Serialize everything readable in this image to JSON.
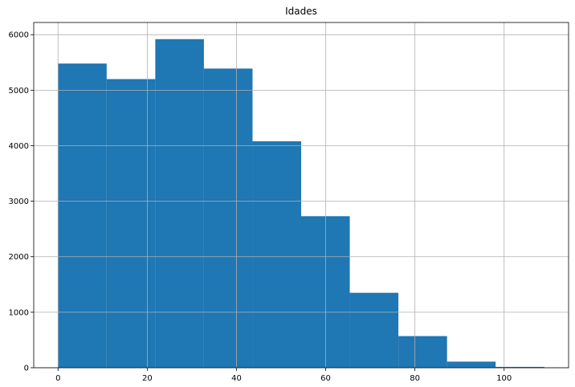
{
  "chart_data": {
    "type": "bar",
    "subtype": "histogram",
    "title": "Idades",
    "xlabel": "",
    "ylabel": "",
    "bin_edges": [
      0,
      10.9,
      21.8,
      32.7,
      43.6,
      54.5,
      65.4,
      76.3,
      87.2,
      98.1,
      109
    ],
    "values": [
      5480,
      5200,
      5920,
      5390,
      4080,
      2730,
      1350,
      570,
      110,
      15
    ],
    "xlim": [
      -5.45,
      114.45
    ],
    "ylim": [
      0,
      6220
    ],
    "xticks": [
      0,
      20,
      40,
      60,
      80,
      100
    ],
    "xtick_labels": [
      "0",
      "20",
      "40",
      "60",
      "80",
      "100"
    ],
    "yticks": [
      0,
      1000,
      2000,
      3000,
      4000,
      5000,
      6000
    ],
    "ytick_labels": [
      "0",
      "1000",
      "2000",
      "3000",
      "4000",
      "5000",
      "6000"
    ],
    "grid": true,
    "legend": "none",
    "colors": {
      "bar": "#1f77b4",
      "grid": "#b0b0b0",
      "axes": "#000000",
      "background": "#ffffff"
    }
  }
}
